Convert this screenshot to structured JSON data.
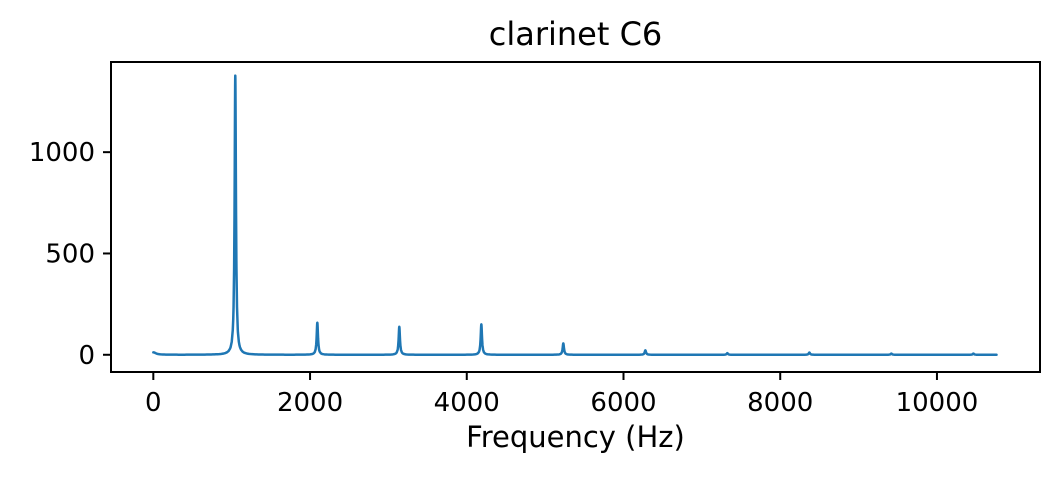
{
  "chart_data": {
    "type": "line",
    "title": "clarinet C6",
    "xlabel": "Frequency (Hz)",
    "ylabel": "",
    "x_ticks": [
      0,
      2000,
      4000,
      6000,
      8000,
      10000
    ],
    "y_ticks": [
      0,
      500,
      1000
    ],
    "xlim": [
      -540,
      11315
    ],
    "ylim": [
      -85,
      1445
    ],
    "x_data_range_hz": [
      0,
      10775
    ],
    "grid": false,
    "legend": null,
    "line_color": "#1f77b4",
    "axis_color": "#000000",
    "line_width": 2.5,
    "peak_halfwidth_hz": 10,
    "peaks": [
      {
        "freq_hz": 0,
        "amplitude": 12,
        "halfwidth_hz": 40
      },
      {
        "freq_hz": 1046,
        "amplitude": 1378
      },
      {
        "freq_hz": 2093,
        "amplitude": 158
      },
      {
        "freq_hz": 3139,
        "amplitude": 138
      },
      {
        "freq_hz": 4186,
        "amplitude": 150
      },
      {
        "freq_hz": 5232,
        "amplitude": 56
      },
      {
        "freq_hz": 6279,
        "amplitude": 22
      },
      {
        "freq_hz": 7325,
        "amplitude": 8
      },
      {
        "freq_hz": 8372,
        "amplitude": 11
      },
      {
        "freq_hz": 9418,
        "amplitude": 6
      },
      {
        "freq_hz": 10465,
        "amplitude": 6
      }
    ]
  }
}
